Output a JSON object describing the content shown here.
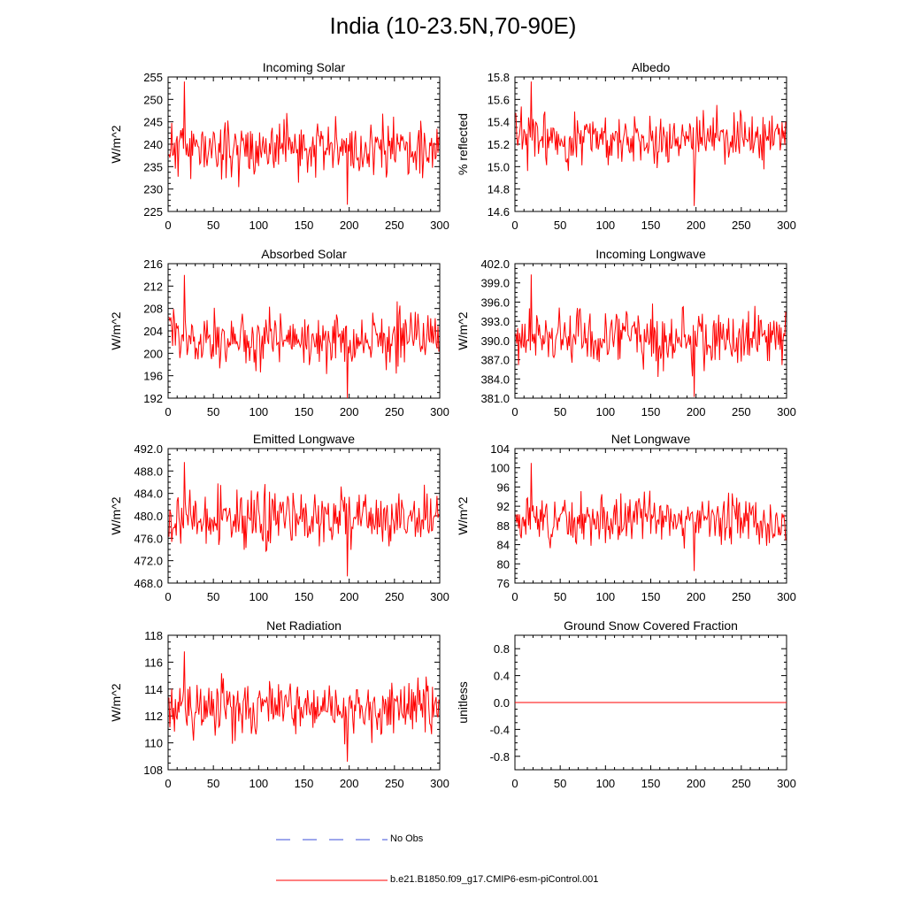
{
  "title": "India (10-23.5N,70-90E)",
  "colors": {
    "model": "#ff0000",
    "obs": "#3b4fd8",
    "axis": "#000000"
  },
  "legend": {
    "obs_label": "No Obs",
    "model_label": "b.e21.B1850.f09_g17.CMIP6-esm-piControl.001"
  },
  "chart_data": [
    {
      "type": "line",
      "title": "Incoming Solar",
      "ylabel": "W/m^2",
      "xlim": [
        0,
        300
      ],
      "ylim": [
        225,
        255
      ],
      "xticks": [
        "0",
        "50",
        "100",
        "150",
        "200",
        "250",
        "300"
      ],
      "yticks": [
        "225",
        "230",
        "235",
        "240",
        "245",
        "250",
        "255"
      ],
      "series": [
        {
          "name": "b.e21.B1850.f09_g17.CMIP6-esm-piControl.001",
          "mean": 239,
          "amp": 4.5,
          "min": 226.5,
          "max": 254,
          "seed": 11,
          "x_start": 1,
          "x_end": 299
        }
      ]
    },
    {
      "type": "line",
      "title": "Albedo",
      "ylabel": "% reflected",
      "xlim": [
        0,
        300
      ],
      "ylim": [
        14.6,
        15.8
      ],
      "xticks": [
        "0",
        "50",
        "100",
        "150",
        "200",
        "250",
        "300"
      ],
      "yticks": [
        "14.6",
        "14.8",
        "15.0",
        "15.2",
        "15.4",
        "15.6",
        "15.8"
      ],
      "series": [
        {
          "name": "b.e21.B1850.f09_g17.CMIP6-esm-piControl.001",
          "mean": 15.25,
          "amp": 0.17,
          "min": 14.65,
          "max": 15.76,
          "seed": 23,
          "x_start": 1,
          "x_end": 299
        }
      ]
    },
    {
      "type": "line",
      "title": "Absorbed Solar",
      "ylabel": "W/m^2",
      "xlim": [
        0,
        300
      ],
      "ylim": [
        192,
        216
      ],
      "xticks": [
        "0",
        "50",
        "100",
        "150",
        "200",
        "250",
        "300"
      ],
      "yticks": [
        "192",
        "196",
        "200",
        "204",
        "208",
        "212",
        "216"
      ],
      "series": [
        {
          "name": "b.e21.B1850.f09_g17.CMIP6-esm-piControl.001",
          "mean": 202.5,
          "amp": 3.5,
          "min": 192,
          "max": 214,
          "seed": 37,
          "x_start": 1,
          "x_end": 299
        }
      ]
    },
    {
      "type": "line",
      "title": "Incoming Longwave",
      "ylabel": "W/m^2",
      "xlim": [
        0,
        300
      ],
      "ylim": [
        381,
        402
      ],
      "xticks": [
        "0",
        "50",
        "100",
        "150",
        "200",
        "250",
        "300"
      ],
      "yticks": [
        "381.0",
        "384.0",
        "387.0",
        "390.0",
        "393.0",
        "396.0",
        "399.0",
        "402.0"
      ],
      "series": [
        {
          "name": "b.e21.B1850.f09_g17.CMIP6-esm-piControl.001",
          "mean": 390.2,
          "amp": 3.2,
          "min": 381.2,
          "max": 400.3,
          "seed": 41,
          "x_start": 1,
          "x_end": 299
        }
      ]
    },
    {
      "type": "line",
      "title": "Emitted Longwave",
      "ylabel": "W/m^2",
      "xlim": [
        0,
        300
      ],
      "ylim": [
        468,
        492
      ],
      "xticks": [
        "0",
        "50",
        "100",
        "150",
        "200",
        "250",
        "300"
      ],
      "yticks": [
        "468.0",
        "472.0",
        "476.0",
        "480.0",
        "484.0",
        "488.0",
        "492.0"
      ],
      "series": [
        {
          "name": "b.e21.B1850.f09_g17.CMIP6-esm-piControl.001",
          "mean": 479.5,
          "amp": 3.6,
          "min": 469.2,
          "max": 489.6,
          "seed": 53,
          "x_start": 1,
          "x_end": 299
        }
      ]
    },
    {
      "type": "line",
      "title": "Net Longwave",
      "ylabel": "W/m^2",
      "xlim": [
        0,
        300
      ],
      "ylim": [
        76,
        104
      ],
      "xticks": [
        "0",
        "50",
        "100",
        "150",
        "200",
        "250",
        "300"
      ],
      "yticks": [
        "76",
        "80",
        "84",
        "88",
        "92",
        "96",
        "100",
        "104"
      ],
      "series": [
        {
          "name": "b.e21.B1850.f09_g17.CMIP6-esm-piControl.001",
          "mean": 89.3,
          "amp": 3.4,
          "min": 78.5,
          "max": 101,
          "seed": 67,
          "x_start": 1,
          "x_end": 299
        }
      ]
    },
    {
      "type": "line",
      "title": "Net Radiation",
      "ylabel": "W/m^2",
      "xlim": [
        0,
        300
      ],
      "ylim": [
        108,
        118
      ],
      "xticks": [
        "0",
        "50",
        "100",
        "150",
        "200",
        "250",
        "300"
      ],
      "yticks": [
        "108",
        "110",
        "112",
        "114",
        "116",
        "118"
      ],
      "series": [
        {
          "name": "b.e21.B1850.f09_g17.CMIP6-esm-piControl.001",
          "mean": 112.6,
          "amp": 1.5,
          "min": 108.6,
          "max": 116.8,
          "seed": 79,
          "x_start": 1,
          "x_end": 299
        }
      ]
    },
    {
      "type": "line",
      "title": "Ground Snow Covered Fraction",
      "ylabel": "unitless",
      "xlim": [
        0,
        300
      ],
      "ylim": [
        -1,
        1
      ],
      "xticks": [
        "0",
        "50",
        "100",
        "150",
        "200",
        "250",
        "300"
      ],
      "yticks": [
        "-0.8",
        "-0.4",
        "0.0",
        "0.4",
        "0.8"
      ],
      "series": [
        {
          "name": "b.e21.B1850.f09_g17.CMIP6-esm-piControl.001",
          "mean": 0,
          "amp": 0,
          "min": 0,
          "max": 0,
          "seed": 0,
          "x_start": 0,
          "x_end": 300
        }
      ]
    }
  ]
}
